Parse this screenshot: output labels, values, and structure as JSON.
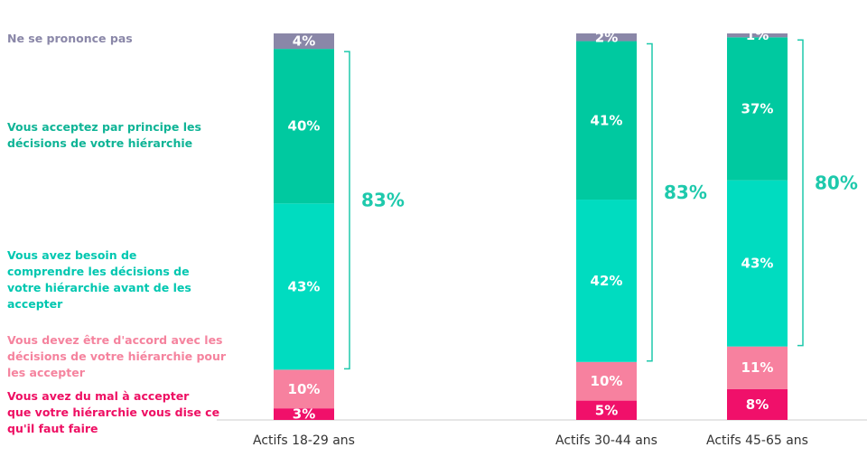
{
  "chart_data": {
    "type": "bar",
    "stacked": true,
    "unit": "%",
    "categories": [
      "Actifs 18-29 ans",
      "Actifs 30-44 ans",
      "Actifs 45-65 ans"
    ],
    "series": [
      {
        "name": "Vous avez du mal à accepter que votre hiérarchie vous dise ce qu'il faut faire",
        "values": [
          3,
          5,
          8
        ],
        "labels": [
          "3%",
          "5%",
          "8%"
        ],
        "color": "#f0106a"
      },
      {
        "name": "Vous devez être d'accord avec les décisions de votre hiérarchie pour les accepter",
        "values": [
          10,
          10,
          11
        ],
        "labels": [
          "10%",
          "10%",
          "11%"
        ],
        "color": "#f7819f"
      },
      {
        "name": "Vous avez besoin de comprendre les décisions de votre hiérarchie avant de les accepter",
        "values": [
          43,
          42,
          43
        ],
        "labels": [
          "43%",
          "42%",
          "43%"
        ],
        "color": "#00dcc0"
      },
      {
        "name": "Vous acceptez par principe les décisions de votre hiérarchie",
        "values": [
          40,
          41,
          37
        ],
        "labels": [
          "40%",
          "41%",
          "37%"
        ],
        "color": "#00c9a0"
      },
      {
        "name": "Ne se prononce pas",
        "values": [
          4,
          2,
          1
        ],
        "labels": [
          "4%",
          "2%",
          "1%"
        ],
        "color": "#8a87a8"
      }
    ],
    "bracket_totals": [
      "83%",
      "83%",
      "80%"
    ],
    "bracket_color": "#1ec9ac",
    "ylim": [
      0,
      100
    ],
    "title": "",
    "xlabel": "",
    "ylabel": ""
  },
  "legend": [
    {
      "text": "Ne se prononce pas",
      "color": "#8a87a8"
    },
    {
      "text": "Vous acceptez par principe les\ndécisions de votre hiérarchie",
      "color": "#0fb496"
    },
    {
      "text": "Vous avez besoin de\ncomprendre les décisions de\nvotre hiérarchie avant de les\naccepter",
      "color": "#00c7b0"
    },
    {
      "text": "Vous devez être d'accord avec les\ndécisions de votre hiérarchie pour\nles accepter",
      "color": "#f5839e"
    },
    {
      "text": "Vous avez du mal à accepter\nque votre hiérarchie vous dise ce\nqu'il faut faire",
      "color": "#ee0f63"
    }
  ]
}
